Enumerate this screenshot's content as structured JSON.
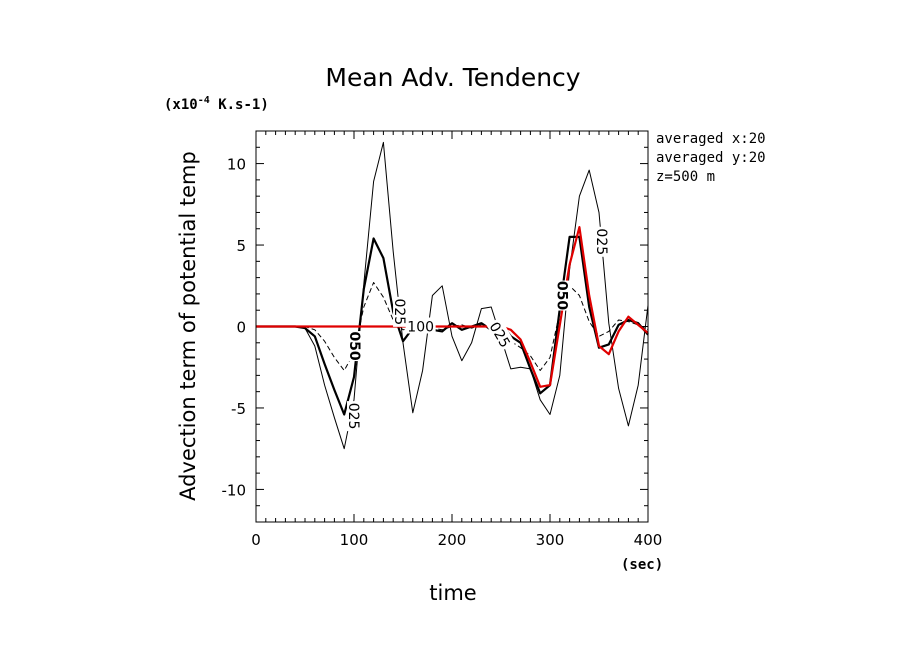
{
  "chart_data": {
    "type": "line",
    "title": "Mean Adv. Tendency",
    "scale_label": "(x10",
    "scale_exp": "-4",
    "scale_unit": " K.s-1)",
    "xlabel": "time",
    "xunit": "(sec)",
    "ylabel": "Advection term of potential temp",
    "xlim": [
      0,
      400
    ],
    "ylim": [
      -12,
      12
    ],
    "xticks": [
      0,
      100,
      200,
      300,
      400
    ],
    "yticks": [
      -10,
      -5,
      0,
      5,
      10
    ],
    "grid": false,
    "info": [
      "averaged  x:20",
      "averaged  y:20",
      "z=500 m"
    ],
    "series": [
      {
        "name": "025",
        "color": "#000000",
        "style": "thin",
        "x": [
          0,
          10,
          20,
          30,
          40,
          50,
          60,
          70,
          80,
          90,
          100,
          110,
          120,
          130,
          140,
          150,
          160,
          170,
          180,
          190,
          200,
          210,
          220,
          230,
          240,
          250,
          260,
          270,
          280,
          290,
          300,
          310,
          320,
          330,
          340,
          350,
          360,
          370,
          380,
          390,
          400
        ],
        "y": [
          0,
          0,
          0,
          0,
          0,
          -0.1,
          -1.2,
          -3.6,
          -5.6,
          -7.5,
          -4.5,
          2.6,
          8.9,
          11.3,
          4.6,
          -1.0,
          -5.3,
          -2.7,
          1.9,
          2.5,
          -0.6,
          -2.1,
          -1.0,
          1.1,
          1.2,
          -0.7,
          -2.6,
          -2.5,
          -2.6,
          -4.5,
          -5.4,
          -3.0,
          3.5,
          8.0,
          9.6,
          7.0,
          0.2,
          -3.8,
          -6.1,
          -3.6,
          1.3
        ]
      },
      {
        "name": "050",
        "color": "#000000",
        "style": "bold",
        "x": [
          0,
          10,
          20,
          30,
          40,
          50,
          60,
          70,
          80,
          90,
          100,
          110,
          120,
          130,
          140,
          150,
          160,
          170,
          180,
          190,
          200,
          210,
          220,
          230,
          240,
          250,
          260,
          270,
          280,
          290,
          300,
          310,
          320,
          330,
          340,
          350,
          360,
          370,
          380,
          390,
          400
        ],
        "y": [
          0,
          0,
          0,
          0,
          0,
          -0.1,
          -0.6,
          -2.3,
          -3.9,
          -5.4,
          -3.1,
          2.3,
          5.4,
          4.2,
          0.9,
          -0.9,
          -0.1,
          0.2,
          -0.2,
          -0.3,
          0.2,
          -0.2,
          0,
          0.2,
          -0.2,
          0.2,
          -0.6,
          -1.0,
          -2.6,
          -4.1,
          -3.6,
          1.1,
          5.5,
          5.5,
          1.2,
          -1.3,
          -1.1,
          0.1,
          0.4,
          0.2,
          -0.5
        ]
      },
      {
        "name": "100",
        "color": "#000000",
        "style": "dashed",
        "x": [
          0,
          10,
          20,
          30,
          40,
          50,
          60,
          70,
          80,
          90,
          100,
          110,
          120,
          130,
          140,
          150,
          160,
          170,
          180,
          190,
          200,
          210,
          220,
          230,
          240,
          250,
          260,
          270,
          280,
          290,
          300,
          310,
          320,
          330,
          340,
          350,
          360,
          370,
          380,
          390,
          400
        ],
        "y": [
          0,
          0,
          0,
          0,
          0,
          0,
          -0.2,
          -0.9,
          -1.9,
          -2.7,
          -1.6,
          1.2,
          2.7,
          1.8,
          0.4,
          -0.2,
          -0.1,
          0.1,
          -0.1,
          -0.2,
          0,
          0.1,
          -0.1,
          0.1,
          -0.1,
          -0.3,
          -0.9,
          -1.3,
          -1.8,
          -2.7,
          -1.9,
          0.9,
          2.5,
          1.9,
          0.3,
          -0.6,
          -0.3,
          0.4,
          0.3,
          0.1,
          -0.2
        ]
      },
      {
        "name": "",
        "color": "#e00000",
        "style": "red",
        "x": [
          0,
          10,
          20,
          30,
          40,
          50,
          60,
          70,
          80,
          90,
          100,
          110,
          120,
          130,
          140,
          150,
          160,
          170,
          180,
          190,
          200,
          210,
          220,
          230,
          240,
          250,
          260,
          270,
          280,
          290,
          300,
          310,
          320,
          330,
          340,
          350,
          360,
          370,
          380,
          390,
          400
        ],
        "y": [
          0,
          0,
          0,
          0,
          0,
          0,
          0,
          0,
          0,
          0,
          0,
          0,
          0,
          0,
          0,
          0,
          0,
          0,
          0,
          0,
          0,
          0,
          0,
          0,
          0,
          0,
          -0.2,
          -0.8,
          -2.2,
          -3.7,
          -3.6,
          0.1,
          3.8,
          6.1,
          1.9,
          -1.2,
          -1.7,
          -0.3,
          0.6,
          0.1,
          -0.4
        ]
      }
    ],
    "contour_labels": [
      {
        "text": "025",
        "x": 100,
        "y": -5.5,
        "rot": 90
      },
      {
        "text": "050",
        "x": 101,
        "y": -1.2,
        "rot": 90
      },
      {
        "text": "025",
        "x": 147,
        "y": 0.9,
        "rot": 90
      },
      {
        "text": "100",
        "x": 168,
        "y": 0.0,
        "rot": 0
      },
      {
        "text": "025",
        "x": 249,
        "y": -0.5,
        "rot": 60
      },
      {
        "text": "050",
        "x": 313,
        "y": 1.9,
        "rot": 90
      },
      {
        "text": "025",
        "x": 353,
        "y": 5.2,
        "rot": 90
      }
    ]
  }
}
